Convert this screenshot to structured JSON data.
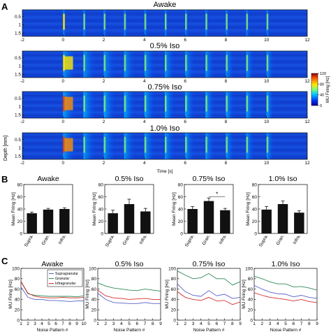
{
  "panel_a": {
    "letter": "A",
    "x_tick_labels": [
      "-2",
      "0",
      "2",
      "4",
      "6",
      "8",
      "10",
      "12"
    ],
    "y_tick_labels": [
      "0.5",
      "1",
      "1.5"
    ],
    "ylabel": "Depth [mm]",
    "xlabel": "Time [s]",
    "colorbar_label": "MU Firing [Hz]",
    "colorbar_ticks": [
      "0",
      "40",
      "80",
      "120"
    ],
    "colormap": [
      "#00008f",
      "#0030ff",
      "#00c8ff",
      "#7dff7a",
      "#ffe600",
      "#ff5a00",
      "#8b0000"
    ],
    "rows": [
      {
        "title": "Awake"
      },
      {
        "title": "0.5% Iso"
      },
      {
        "title": "0.75% Iso"
      },
      {
        "title": "1.0% Iso"
      }
    ]
  },
  "panel_b": {
    "letter": "B",
    "significance_marker": "*"
  },
  "panel_c": {
    "letter": "C"
  },
  "chart_data": [
    {
      "type": "heatmap",
      "panel": "A",
      "xlim": [
        -2,
        12
      ],
      "ylim": [
        1.7,
        0.1
      ],
      "clim": [
        0,
        120
      ],
      "stimulus_onsets_s": [
        0,
        1,
        2,
        3,
        4,
        5,
        6,
        7,
        8,
        9,
        10
      ],
      "titles": [
        "Awake",
        "0.5% Iso",
        "0.75% Iso",
        "1.0% Iso"
      ],
      "xlabel": "Time [s]",
      "ylabel": "Depth [mm]",
      "colorbar_label": "MU Firing [Hz]"
    },
    {
      "type": "bar",
      "panel": "B",
      "categories": [
        "Supra.",
        "Gran.",
        "Infra."
      ],
      "ylabel": "Mean Firing [Hz]",
      "ylim": [
        0,
        80
      ],
      "yticks": [
        "0",
        "20",
        "40",
        "60",
        "80"
      ],
      "subplots": [
        {
          "title": "Awake",
          "values": [
            33,
            39,
            40
          ],
          "errors": [
            2,
            2,
            2
          ]
        },
        {
          "title": "0.5% Iso",
          "values": [
            33,
            48,
            36
          ],
          "errors": [
            5,
            8,
            5
          ]
        },
        {
          "title": "0.75% Iso",
          "values": [
            40,
            53,
            38
          ],
          "errors": [
            4,
            5,
            3
          ],
          "significance": "*"
        },
        {
          "title": "1.0% Iso",
          "values": [
            39,
            48,
            34
          ],
          "errors": [
            5,
            5,
            3
          ]
        }
      ]
    },
    {
      "type": "line",
      "panel": "C",
      "xlabel": "Noise Pattern #",
      "ylabel": "MU Firing [Hz]",
      "ylim": [
        0,
        100
      ],
      "yticks": [
        "0",
        "20",
        "40",
        "60",
        "80",
        "100"
      ],
      "xticks": [
        "1",
        "2",
        "3",
        "4",
        "5",
        "6",
        "7",
        "8",
        "9",
        "10"
      ],
      "legend": {
        "placement": "top-right",
        "entries": [
          "Supragranular",
          "Granular",
          "Infragranular"
        ]
      },
      "series_colors": [
        "#5560c8",
        "#2e8b57",
        "#d62d2d"
      ],
      "subplots": [
        {
          "title": "Awake",
          "x": [
            1,
            2,
            3,
            4,
            5,
            6,
            7,
            8,
            9,
            10
          ],
          "series": [
            {
              "name": "Supragranular",
              "values": [
                64,
                44,
                40,
                40,
                38,
                38,
                37,
                36,
                37,
                37
              ]
            },
            {
              "name": "Granular",
              "values": [
                74,
                51,
                48,
                47,
                46,
                46,
                46,
                46,
                45,
                47
              ]
            },
            {
              "name": "Infragranular",
              "values": [
                75,
                52,
                46,
                44,
                43,
                43,
                44,
                43,
                43,
                44
              ]
            }
          ]
        },
        {
          "title": "0.5% Iso",
          "x": [
            1,
            2,
            3,
            4,
            5,
            6,
            7,
            8,
            9
          ],
          "series": [
            {
              "name": "Supragranular",
              "values": [
                52,
                40,
                34,
                33,
                32,
                32,
                34,
                32,
                32
              ]
            },
            {
              "name": "Granular",
              "values": [
                72,
                66,
                62,
                60,
                58,
                57,
                60,
                58,
                56
              ]
            },
            {
              "name": "Infragranular",
              "values": [
                58,
                47,
                43,
                42,
                40,
                41,
                42,
                40,
                40
              ]
            }
          ]
        },
        {
          "title": "0.75% Iso",
          "x": [
            1,
            2,
            3,
            4,
            5,
            6,
            7,
            8,
            9
          ],
          "series": [
            {
              "name": "Supragranular",
              "values": [
                70,
                55,
                48,
                46,
                57,
                47,
                50,
                42,
                44
              ]
            },
            {
              "name": "Granular",
              "values": [
                95,
                87,
                80,
                82,
                90,
                80,
                80,
                68,
                74
              ]
            },
            {
              "name": "Infragranular",
              "values": [
                55,
                44,
                40,
                38,
                44,
                37,
                38,
                30,
                35
              ]
            }
          ]
        },
        {
          "title": "1.0% Iso",
          "x": [
            1,
            2,
            3,
            4,
            5,
            6,
            7,
            8,
            9
          ],
          "series": [
            {
              "name": "Supragranular",
              "values": [
                67,
                60,
                54,
                51,
                50,
                45,
                48,
                44,
                42
              ]
            },
            {
              "name": "Granular",
              "values": [
                85,
                80,
                74,
                70,
                70,
                64,
                65,
                62,
                58
              ]
            },
            {
              "name": "Infragranular",
              "values": [
                53,
                48,
                44,
                42,
                40,
                37,
                40,
                36,
                34
              ]
            }
          ]
        }
      ]
    }
  ]
}
